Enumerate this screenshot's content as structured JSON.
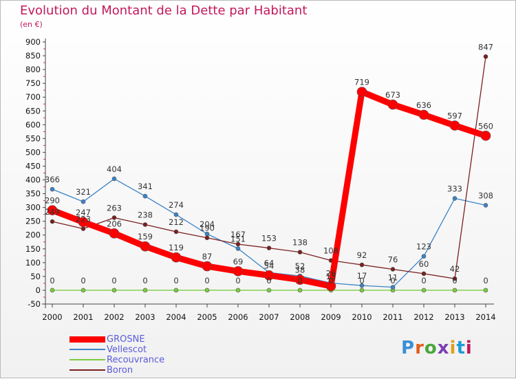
{
  "title": "Evolution du Montant de la Dette par Habitant",
  "unit": "(en €)",
  "logo": "Proxiti",
  "chart_data": {
    "type": "line",
    "x": [
      "2000",
      "2001",
      "2002",
      "2003",
      "2004",
      "2005",
      "2006",
      "2007",
      "2008",
      "2009",
      "2010",
      "2011",
      "2012",
      "2013",
      "2014"
    ],
    "ylim": [
      -50,
      900
    ],
    "yticks": [
      -50,
      0,
      50,
      100,
      150,
      200,
      250,
      300,
      350,
      400,
      450,
      500,
      550,
      600,
      650,
      700,
      750,
      800,
      850,
      900
    ],
    "grid": false,
    "legend": "bottom-left",
    "series": [
      {
        "name": "GROSNE",
        "color": "#ff0000",
        "values": [
          290,
          247,
          206,
          159,
          119,
          87,
          69,
          54,
          38,
          15,
          719,
          673,
          636,
          597,
          560
        ]
      },
      {
        "name": "Vellescot",
        "color": "#3b83c6",
        "values": [
          366,
          321,
          404,
          341,
          274,
          204,
          151,
          64,
          52,
          26,
          17,
          11,
          123,
          333,
          308
        ]
      },
      {
        "name": "Recouvrance",
        "color": "#7ccc3e",
        "values": [
          0,
          0,
          0,
          0,
          0,
          0,
          0,
          0,
          0,
          0,
          0,
          0,
          0,
          0,
          0
        ]
      },
      {
        "name": "Boron",
        "color": "#7a1f1f",
        "values": [
          249,
          223,
          263,
          238,
          212,
          190,
          167,
          153,
          138,
          108,
          92,
          76,
          60,
          42,
          847
        ]
      }
    ],
    "data_labels": [
      {
        "series": 1,
        "points": [
          0,
          1,
          2,
          3,
          4,
          5,
          6,
          7,
          8,
          9,
          10,
          11,
          12,
          13,
          14
        ],
        "texts": [
          "366",
          "321",
          "404",
          "341",
          "274",
          "204",
          "151",
          "64",
          "52",
          "26",
          "17",
          "11",
          "123",
          "333",
          "308"
        ]
      },
      {
        "series": 2,
        "points": [
          0,
          1,
          2,
          3,
          4,
          5,
          6,
          7,
          8,
          9,
          10,
          11,
          12,
          13,
          14
        ],
        "texts": [
          "0",
          "0",
          "0",
          "0",
          "0",
          "0",
          "0",
          "0",
          "0",
          "0",
          "0",
          "0",
          "0",
          "0",
          "0"
        ]
      },
      {
        "series": 3,
        "points": [
          0,
          1,
          2,
          3,
          4,
          5,
          6,
          7,
          8,
          9,
          10,
          11,
          12,
          13,
          14
        ],
        "texts": [
          "249",
          "223",
          "263",
          "238",
          "212",
          "190",
          "167",
          "153",
          "138",
          "108",
          "92",
          "76",
          "60",
          "42",
          "847"
        ]
      },
      {
        "series": 0,
        "points": [
          0,
          1,
          2,
          3,
          4,
          5,
          6,
          7,
          8,
          9,
          10,
          11,
          12,
          13,
          14
        ],
        "texts": [
          "290",
          "247",
          "206",
          "159",
          "119",
          "87",
          "69",
          "54",
          "38",
          "15",
          "719",
          "673",
          "636",
          "597",
          "560"
        ]
      }
    ]
  }
}
